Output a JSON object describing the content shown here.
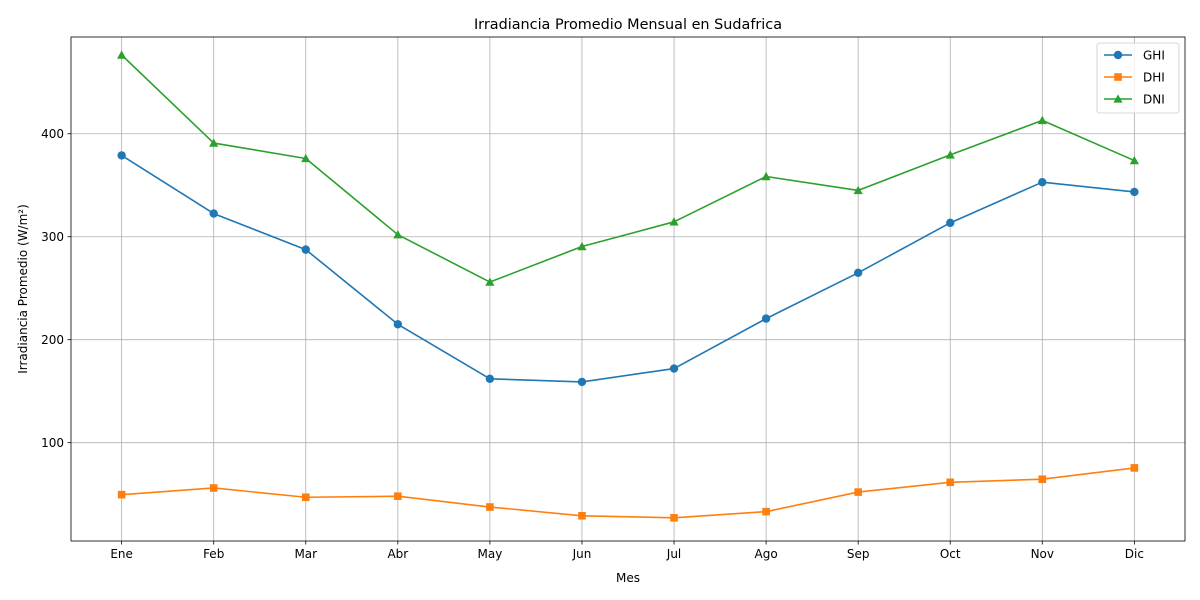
{
  "chart_data": {
    "type": "line",
    "title": "Irradiancia Promedio Mensual en Sudafrica",
    "xlabel": "Mes",
    "ylabel": "Irradiancia Promedio (W/m²)",
    "categories": [
      "Ene",
      "Feb",
      "Mar",
      "Abr",
      "May",
      "Jun",
      "Jul",
      "Ago",
      "Sep",
      "Oct",
      "Nov",
      "Dic"
    ],
    "ylim": [
      4.5,
      494
    ],
    "yticks": [
      100,
      200,
      300,
      400
    ],
    "grid": true,
    "legend_position": "top-right",
    "series": [
      {
        "name": "GHI",
        "color": "#1f77b4",
        "marker": "circle",
        "values": [
          379,
          322.5,
          287.5,
          215,
          162,
          159,
          172,
          220.5,
          265,
          313.5,
          353,
          343.5
        ]
      },
      {
        "name": "DHI",
        "color": "#ff7f0e",
        "marker": "square",
        "values": [
          49.5,
          56,
          47,
          48,
          37.5,
          29,
          27,
          33,
          52,
          61.5,
          64.5,
          75.5
        ]
      },
      {
        "name": "DNI",
        "color": "#2ca02c",
        "marker": "triangle",
        "values": [
          476.5,
          391,
          376,
          302,
          256,
          290.5,
          314.5,
          358.5,
          345,
          379.5,
          413,
          374
        ]
      }
    ]
  }
}
